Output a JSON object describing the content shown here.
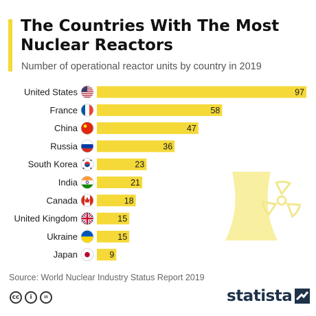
{
  "title": "The Countries With The Most Nuclear Reactors",
  "subtitle": "Number of operational reactor units by country in 2019",
  "source": "Source: World Nuclear Industry Status Report 2019",
  "brand": "statista",
  "license_icons": [
    "creative-commons-icon",
    "attribution-icon",
    "no-derivatives-icon"
  ],
  "colors": {
    "bar": "#f4d938",
    "accent": "#f4d938",
    "illustration": "#f8efa0",
    "brand": "#1f3249"
  },
  "chart_data": {
    "type": "bar",
    "orientation": "horizontal",
    "categories": [
      "United States",
      "France",
      "China",
      "Russia",
      "South Korea",
      "India",
      "Canada",
      "United Kingdom",
      "Ukraine",
      "Japan"
    ],
    "flags": [
      "us",
      "fr",
      "cn",
      "ru",
      "kr",
      "in",
      "ca",
      "gb",
      "ua",
      "jp"
    ],
    "values": [
      97,
      58,
      47,
      36,
      23,
      21,
      18,
      15,
      15,
      9
    ],
    "title": "The Countries With The Most Nuclear Reactors",
    "subtitle": "Number of operational reactor units by country in 2019",
    "xlim": [
      0,
      97
    ],
    "grid": false,
    "data_labels": true
  }
}
